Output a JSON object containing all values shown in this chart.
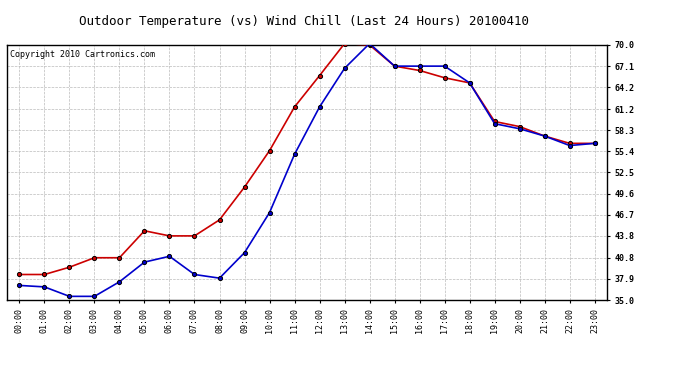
{
  "title": "Outdoor Temperature (vs) Wind Chill (Last 24 Hours) 20100410",
  "copyright": "Copyright 2010 Cartronics.com",
  "x_labels": [
    "00:00",
    "01:00",
    "02:00",
    "03:00",
    "04:00",
    "05:00",
    "06:00",
    "07:00",
    "08:00",
    "09:00",
    "10:00",
    "11:00",
    "12:00",
    "13:00",
    "14:00",
    "15:00",
    "16:00",
    "17:00",
    "18:00",
    "19:00",
    "20:00",
    "21:00",
    "22:00",
    "23:00"
  ],
  "red_data": [
    38.5,
    38.5,
    39.5,
    40.8,
    40.8,
    44.5,
    43.8,
    43.8,
    46.0,
    50.5,
    55.5,
    61.5,
    65.8,
    70.2,
    70.0,
    67.1,
    66.5,
    65.5,
    64.8,
    59.5,
    58.8,
    57.5,
    56.5,
    56.5
  ],
  "blue_data": [
    37.0,
    36.8,
    35.5,
    35.5,
    37.5,
    40.2,
    41.0,
    38.5,
    38.0,
    41.5,
    47.0,
    55.0,
    61.5,
    66.8,
    70.2,
    67.1,
    67.1,
    67.1,
    64.8,
    59.2,
    58.5,
    57.5,
    56.2,
    56.5
  ],
  "ylim": [
    35.0,
    70.0
  ],
  "yticks": [
    35.0,
    37.9,
    40.8,
    43.8,
    46.7,
    49.6,
    52.5,
    55.4,
    58.3,
    61.2,
    64.2,
    67.1,
    70.0
  ],
  "red_color": "#cc0000",
  "blue_color": "#0000cc",
  "marker_color": "#000000",
  "bg_color": "#ffffff",
  "grid_color": "#bbbbbb",
  "title_fontsize": 9,
  "axis_fontsize": 6,
  "copyright_fontsize": 6
}
